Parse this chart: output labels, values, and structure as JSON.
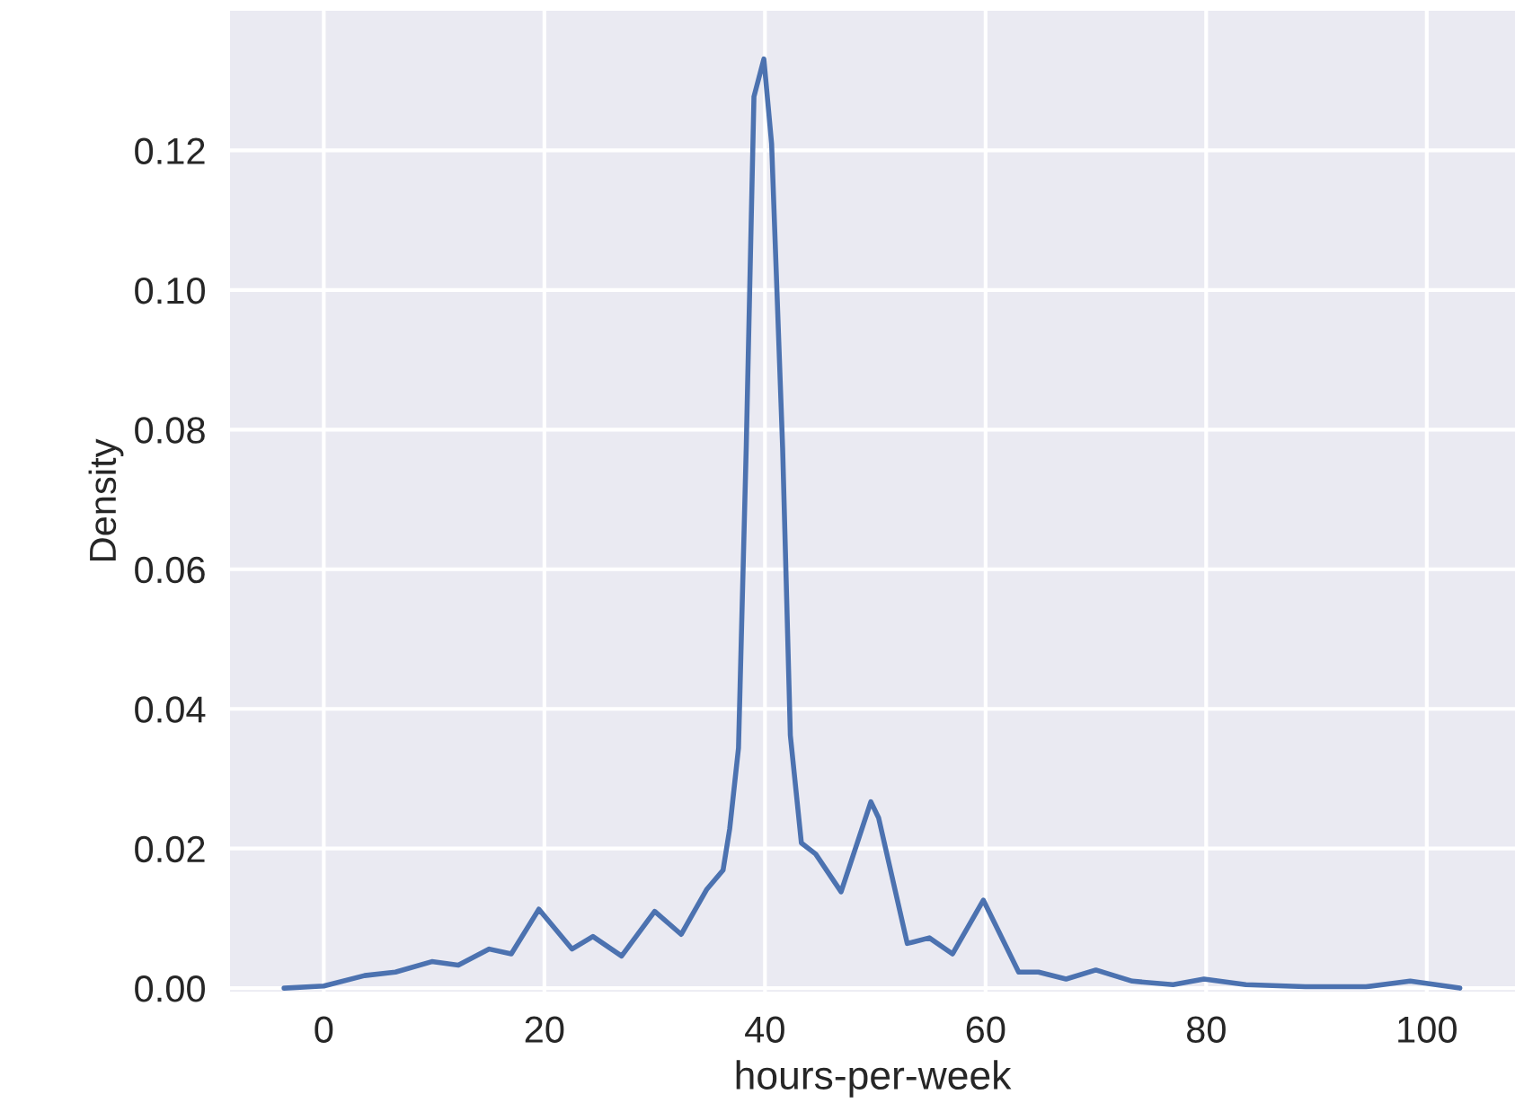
{
  "chart_data": {
    "type": "line",
    "xlabel": "hours-per-week",
    "ylabel": "Density",
    "xlim": [
      -8.5,
      108
    ],
    "ylim": [
      -0.0005,
      0.14
    ],
    "xticks": [
      0,
      20,
      40,
      60,
      80,
      100
    ],
    "yticks": [
      {
        "value": 0,
        "label": "0.00"
      },
      {
        "value": 0.02,
        "label": "0.02"
      },
      {
        "value": 0.04,
        "label": "0.04"
      },
      {
        "value": 0.06,
        "label": "0.06"
      },
      {
        "value": 0.08,
        "label": "0.08"
      },
      {
        "value": 0.1,
        "label": "0.10"
      },
      {
        "value": 0.12,
        "label": "0.12"
      }
    ],
    "grid": true,
    "legend": false,
    "marker": "none",
    "line_style": "solid",
    "series": [
      {
        "color": "#4c72b0",
        "x": [
          -3.6,
          0,
          3.7,
          6.5,
          9.8,
          12.2,
          15,
          17,
          19.5,
          22.5,
          24.4,
          27,
          30,
          32.4,
          34.7,
          36.2,
          36.8,
          37.6,
          38.3,
          39,
          39.9,
          40.6,
          41.6,
          42.3,
          43.3,
          44.6,
          46.9,
          49.6,
          50.3,
          52.9,
          54.9,
          57,
          59.8,
          63,
          64.8,
          67.3,
          70,
          73.3,
          77,
          79.8,
          83.6,
          89,
          94.5,
          98.5,
          103
        ],
        "values": [
          0,
          0.0003,
          0.0018,
          0.0023,
          0.0038,
          0.0033,
          0.0056,
          0.0049,
          0.0113,
          0.0056,
          0.0074,
          0.0046,
          0.011,
          0.0077,
          0.0141,
          0.0169,
          0.0228,
          0.0344,
          0.0774,
          0.1277,
          0.1331,
          0.121,
          0.0774,
          0.0362,
          0.0208,
          0.0192,
          0.0138,
          0.0267,
          0.0244,
          0.0064,
          0.0072,
          0.0049,
          0.0126,
          0.0023,
          0.0023,
          0.0013,
          0.0026,
          0.001,
          0.0005,
          0.0013,
          0.0005,
          0.0002,
          0.0002,
          0.001,
          0
        ]
      }
    ]
  }
}
